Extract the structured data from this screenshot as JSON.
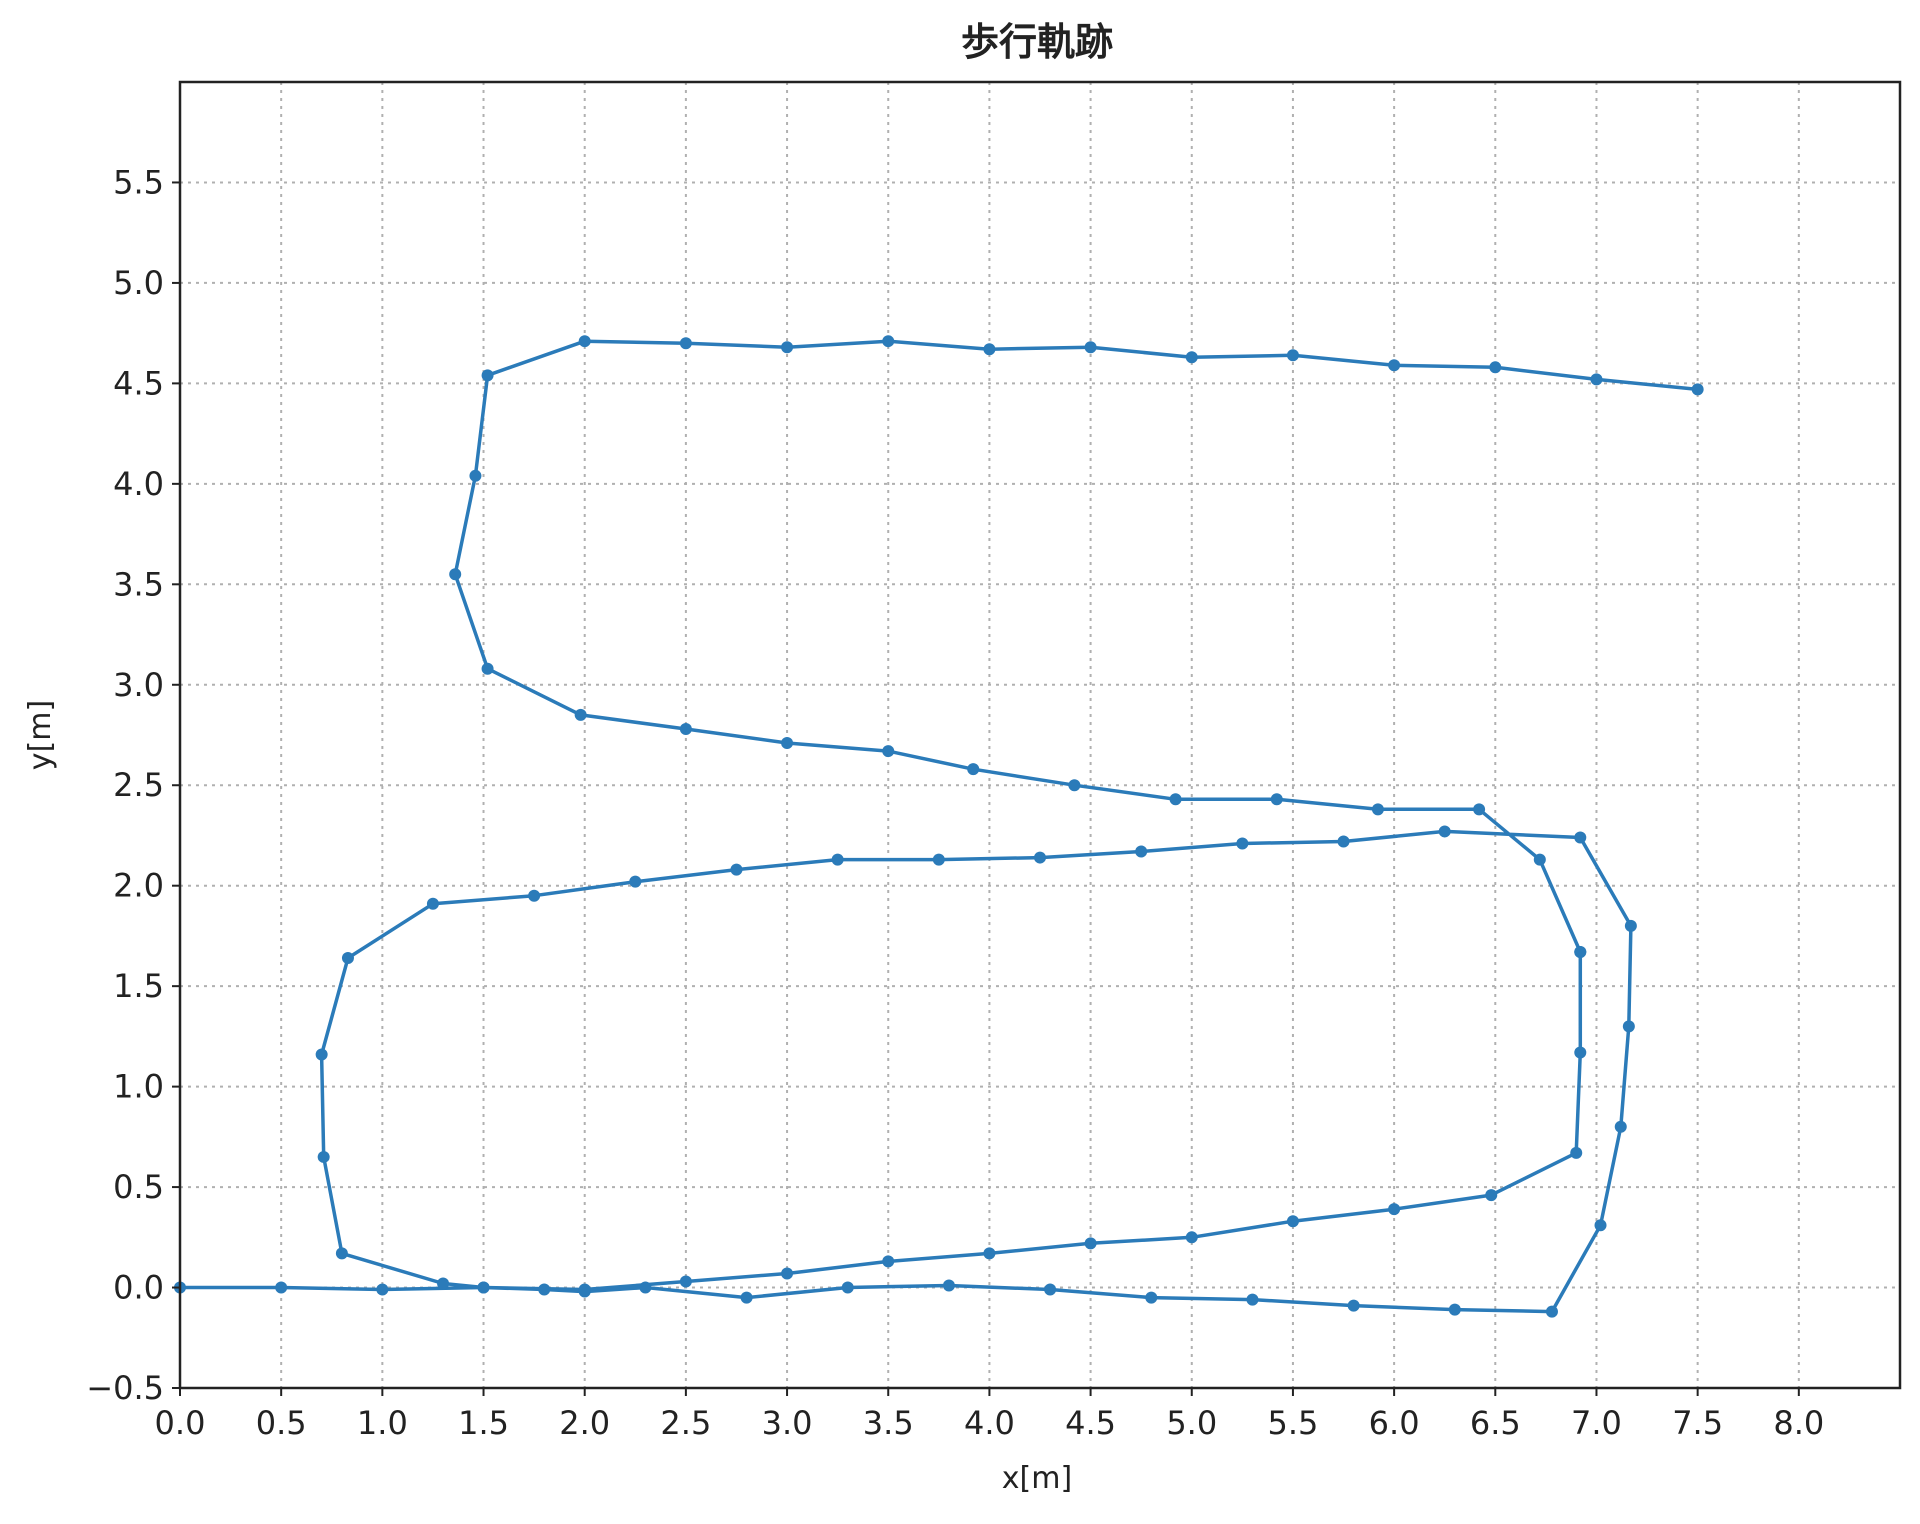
{
  "chart_data": {
    "type": "line",
    "title": "歩行軌跡",
    "xlabel": "x[m]",
    "ylabel": "y[m]",
    "xlim": [
      0.0,
      8.5
    ],
    "ylim": [
      -0.5,
      6.0
    ],
    "xticks": [
      "0.0",
      "0.5",
      "1.0",
      "1.5",
      "2.0",
      "2.5",
      "3.0",
      "3.5",
      "4.0",
      "4.5",
      "5.0",
      "5.5",
      "6.0",
      "6.5",
      "7.0",
      "7.5",
      "8.0"
    ],
    "yticks": [
      "−0.5",
      "0.0",
      "0.5",
      "1.0",
      "1.5",
      "2.0",
      "2.5",
      "3.0",
      "3.5",
      "4.0",
      "4.5",
      "5.0",
      "5.5"
    ],
    "grid": true,
    "color": "#2b7bb9",
    "series": [
      {
        "x": [
          0.0,
          0.5,
          1.0,
          1.5,
          1.8,
          2.0,
          2.3,
          2.8,
          3.3,
          3.8,
          4.3,
          4.8,
          5.3,
          5.8,
          6.3,
          6.78,
          7.02,
          7.12,
          7.16,
          7.17,
          6.92,
          6.25,
          5.75,
          5.25,
          4.75,
          4.25,
          3.75,
          3.25,
          2.75,
          2.25,
          1.75,
          1.25,
          0.83,
          0.7,
          0.71,
          0.8,
          1.3,
          1.5,
          2.0,
          2.5,
          3.0,
          3.5,
          4.0,
          4.5,
          5.0,
          5.5,
          6.0,
          6.48,
          6.9,
          6.92,
          6.92,
          6.92,
          6.72,
          6.42,
          5.92,
          5.42,
          4.92,
          4.42,
          3.92,
          3.5,
          3.0,
          2.5,
          1.98,
          1.52,
          1.36,
          1.46,
          1.52,
          2.0,
          2.5,
          3.0,
          3.5,
          4.0,
          4.5,
          5.0,
          5.5,
          6.0,
          6.5,
          7.0,
          7.5
        ],
        "y": [
          0.0,
          0.0,
          -0.01,
          0.0,
          -0.01,
          -0.02,
          0.0,
          -0.05,
          0.0,
          0.01,
          -0.01,
          -0.05,
          -0.06,
          -0.09,
          -0.11,
          -0.12,
          0.31,
          0.8,
          1.3,
          1.8,
          2.24,
          2.27,
          2.22,
          2.21,
          2.17,
          2.14,
          2.13,
          2.13,
          2.08,
          2.02,
          1.95,
          1.91,
          1.64,
          1.16,
          0.65,
          0.17,
          0.02,
          0.0,
          -0.01,
          0.03,
          0.07,
          0.13,
          0.17,
          0.22,
          0.25,
          0.33,
          0.39,
          0.46,
          0.67,
          1.17,
          1.67,
          1.67,
          2.13,
          2.38,
          2.38,
          2.43,
          2.43,
          2.5,
          2.58,
          2.67,
          2.71,
          2.78,
          2.85,
          3.08,
          3.55,
          4.04,
          4.54,
          4.71,
          4.7,
          4.68,
          4.71,
          4.67,
          4.68,
          4.63,
          4.64,
          4.59,
          4.58,
          4.52,
          4.47
        ]
      }
    ]
  }
}
